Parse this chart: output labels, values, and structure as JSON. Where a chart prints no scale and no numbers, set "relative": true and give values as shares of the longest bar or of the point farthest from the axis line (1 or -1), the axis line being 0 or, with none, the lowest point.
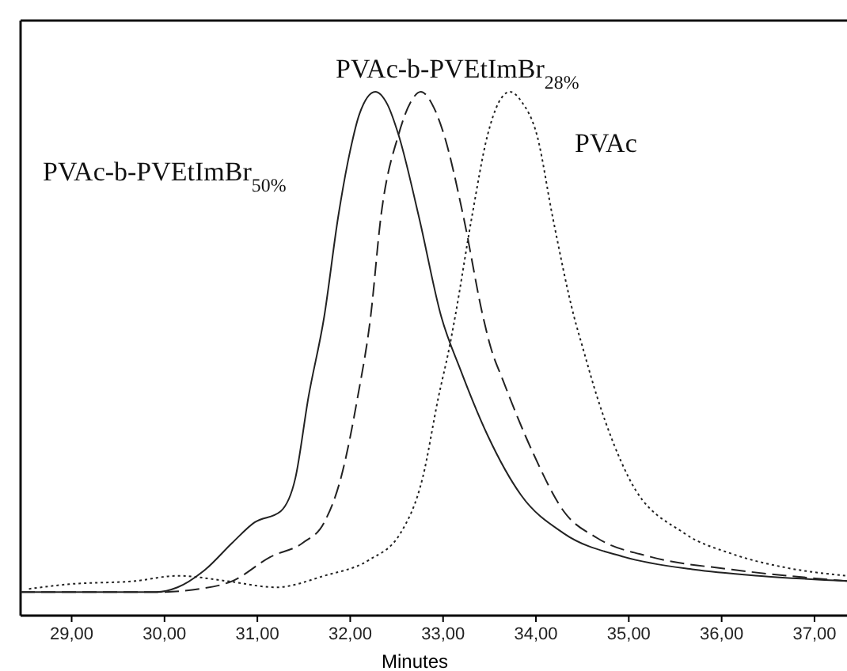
{
  "chart_data": {
    "type": "line",
    "xlabel": "Minutes",
    "relative": true,
    "tick_labels": "x",
    "xlim": [
      28.45,
      37.35
    ],
    "xticks": [
      {
        "value": 29,
        "label": "29,00"
      },
      {
        "value": 30,
        "label": "30,00"
      },
      {
        "value": 31,
        "label": "31,00"
      },
      {
        "value": 32,
        "label": "32,00"
      },
      {
        "value": 33,
        "label": "33,00"
      },
      {
        "value": 34,
        "label": "34,00"
      },
      {
        "value": 35,
        "label": "35,00"
      },
      {
        "value": 36,
        "label": "36,00"
      },
      {
        "value": 37,
        "label": "37,00"
      }
    ],
    "series": [
      {
        "name": "PVAc-b-PVEtImBr$_{50%}$",
        "color": "#222222",
        "line_style": "solid",
        "x": [
          28.45,
          29.5,
          29.91,
          30.14,
          30.44,
          30.73,
          30.97,
          31.25,
          31.41,
          31.55,
          31.72,
          31.87,
          32.0,
          32.1,
          32.27,
          32.4,
          32.52,
          32.74,
          32.98,
          33.19,
          33.48,
          33.84,
          34.3,
          34.95,
          35.7,
          36.4,
          37.35
        ],
        "values": [
          0.045,
          0.045,
          0.045,
          0.054,
          0.088,
          0.139,
          0.178,
          0.199,
          0.263,
          0.417,
          0.571,
          0.761,
          0.888,
          0.958,
          1.0,
          0.976,
          0.918,
          0.761,
          0.571,
          0.468,
          0.344,
          0.23,
          0.157,
          0.112,
          0.088,
          0.076,
          0.066
        ]
      },
      {
        "name": "PVAc-b-PVEtImBr$_{28%}$",
        "color": "#222222",
        "line_style": "dashed",
        "x": [
          28.45,
          29.95,
          30.38,
          30.73,
          31.14,
          31.49,
          31.72,
          31.9,
          32.08,
          32.22,
          32.33,
          32.52,
          32.65,
          32.76,
          32.9,
          33.01,
          33.22,
          33.43,
          33.51,
          33.65,
          33.96,
          34.3,
          34.66,
          35.24,
          36.11,
          37.35
        ],
        "values": [
          0.045,
          0.045,
          0.051,
          0.066,
          0.112,
          0.139,
          0.178,
          0.263,
          0.417,
          0.571,
          0.761,
          0.918,
          0.98,
          1.0,
          0.97,
          0.918,
          0.761,
          0.571,
          0.514,
          0.447,
          0.314,
          0.199,
          0.148,
          0.112,
          0.088,
          0.066
        ]
      },
      {
        "name": "PVAc",
        "color": "#222222",
        "line_style": "dotted",
        "x": [
          28.54,
          28.97,
          29.68,
          30.14,
          30.67,
          31.2,
          31.72,
          32.2,
          32.54,
          32.78,
          32.95,
          33.07,
          33.13,
          33.31,
          33.48,
          33.6,
          33.72,
          33.85,
          34.01,
          34.18,
          34.41,
          34.5,
          34.66,
          35.0,
          35.6,
          36.11,
          36.71,
          37.35
        ],
        "values": [
          0.051,
          0.06,
          0.066,
          0.076,
          0.066,
          0.054,
          0.076,
          0.106,
          0.157,
          0.263,
          0.417,
          0.514,
          0.571,
          0.761,
          0.918,
          0.98,
          1.0,
          0.98,
          0.918,
          0.761,
          0.571,
          0.514,
          0.417,
          0.263,
          0.157,
          0.118,
          0.091,
          0.076
        ]
      }
    ]
  }
}
